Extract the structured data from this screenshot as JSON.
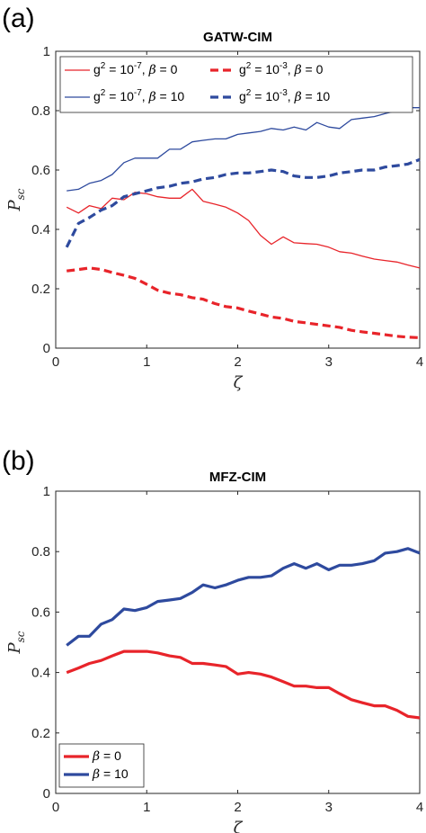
{
  "chart_data": [
    {
      "panel": "(a)",
      "type": "line",
      "title": "GATW-CIM",
      "xlabel": "ζ",
      "ylabel_main": "P",
      "ylabel_sub": "sc",
      "xlim": [
        0,
        4
      ],
      "ylim": [
        0,
        1
      ],
      "xticks": [
        "0",
        "1",
        "2",
        "3",
        "4"
      ],
      "yticks": [
        "0",
        "0.2",
        "0.4",
        "0.6",
        "0.8",
        "1"
      ],
      "legend_position": "top",
      "series": [
        {
          "name": "g² = 10⁻⁷, β = 0",
          "legend": {
            "g_exp": "-7",
            "beta": "0"
          },
          "color": "#e8242a",
          "style": "solid",
          "weight": "thin",
          "x": [
            0.12,
            0.25,
            0.37,
            0.5,
            0.62,
            0.75,
            0.87,
            1.0,
            1.12,
            1.25,
            1.37,
            1.5,
            1.62,
            1.75,
            1.87,
            2.0,
            2.12,
            2.25,
            2.37,
            2.5,
            2.62,
            2.75,
            2.87,
            3.0,
            3.12,
            3.25,
            3.37,
            3.5,
            3.62,
            3.75,
            3.87,
            4.0
          ],
          "y": [
            0.475,
            0.455,
            0.48,
            0.47,
            0.505,
            0.5,
            0.525,
            0.52,
            0.51,
            0.505,
            0.505,
            0.535,
            0.495,
            0.485,
            0.475,
            0.455,
            0.43,
            0.38,
            0.35,
            0.375,
            0.355,
            0.352,
            0.35,
            0.34,
            0.325,
            0.32,
            0.31,
            0.3,
            0.295,
            0.29,
            0.28,
            0.27
          ]
        },
        {
          "name": "g² = 10⁻⁷, β = 10",
          "legend": {
            "g_exp": "-7",
            "beta": "10"
          },
          "color": "#2e4a9e",
          "style": "solid",
          "weight": "thin",
          "x": [
            0.12,
            0.25,
            0.37,
            0.5,
            0.62,
            0.75,
            0.87,
            1.0,
            1.12,
            1.25,
            1.37,
            1.5,
            1.62,
            1.75,
            1.87,
            2.0,
            2.12,
            2.25,
            2.37,
            2.5,
            2.62,
            2.75,
            2.87,
            3.0,
            3.12,
            3.25,
            3.37,
            3.5,
            3.62,
            3.75,
            3.87,
            4.0
          ],
          "y": [
            0.53,
            0.535,
            0.555,
            0.565,
            0.585,
            0.625,
            0.64,
            0.64,
            0.64,
            0.67,
            0.67,
            0.695,
            0.7,
            0.705,
            0.705,
            0.72,
            0.725,
            0.73,
            0.74,
            0.735,
            0.745,
            0.735,
            0.76,
            0.745,
            0.74,
            0.77,
            0.775,
            0.78,
            0.79,
            0.8,
            0.81,
            0.81
          ]
        },
        {
          "name": "g² = 10⁻³, β = 0",
          "legend": {
            "g_exp": "-3",
            "beta": "0"
          },
          "color": "#e8242a",
          "style": "dashed",
          "weight": "thick",
          "x": [
            0.12,
            0.25,
            0.37,
            0.5,
            0.62,
            0.75,
            0.87,
            1.0,
            1.12,
            1.25,
            1.37,
            1.5,
            1.62,
            1.75,
            1.87,
            2.0,
            2.12,
            2.25,
            2.37,
            2.5,
            2.62,
            2.75,
            2.87,
            3.0,
            3.12,
            3.25,
            3.37,
            3.5,
            3.62,
            3.75,
            3.87,
            4.0
          ],
          "y": [
            0.26,
            0.265,
            0.27,
            0.265,
            0.255,
            0.245,
            0.235,
            0.215,
            0.195,
            0.185,
            0.18,
            0.17,
            0.165,
            0.15,
            0.14,
            0.135,
            0.125,
            0.115,
            0.105,
            0.1,
            0.09,
            0.085,
            0.08,
            0.075,
            0.07,
            0.06,
            0.055,
            0.05,
            0.045,
            0.04,
            0.037,
            0.035
          ]
        },
        {
          "name": "g² = 10⁻³, β = 10",
          "legend": {
            "g_exp": "-3",
            "beta": "10"
          },
          "color": "#2e4a9e",
          "style": "dashed",
          "weight": "thick",
          "x": [
            0.12,
            0.25,
            0.37,
            0.5,
            0.62,
            0.75,
            0.87,
            1.0,
            1.12,
            1.25,
            1.37,
            1.5,
            1.62,
            1.75,
            1.87,
            2.0,
            2.12,
            2.25,
            2.37,
            2.5,
            2.62,
            2.75,
            2.87,
            3.0,
            3.12,
            3.25,
            3.37,
            3.5,
            3.62,
            3.75,
            3.87,
            4.0
          ],
          "y": [
            0.34,
            0.42,
            0.44,
            0.465,
            0.48,
            0.51,
            0.52,
            0.53,
            0.54,
            0.545,
            0.555,
            0.56,
            0.57,
            0.575,
            0.585,
            0.59,
            0.59,
            0.595,
            0.6,
            0.595,
            0.58,
            0.575,
            0.575,
            0.58,
            0.59,
            0.595,
            0.6,
            0.6,
            0.61,
            0.615,
            0.62,
            0.635
          ]
        }
      ]
    },
    {
      "panel": "(b)",
      "type": "line",
      "title": "MFZ-CIM",
      "xlabel": "ζ",
      "ylabel_main": "P",
      "ylabel_sub": "sc",
      "xlim": [
        0,
        4
      ],
      "ylim": [
        0,
        1
      ],
      "xticks": [
        "0",
        "1",
        "2",
        "3",
        "4"
      ],
      "yticks": [
        "0",
        "0.2",
        "0.4",
        "0.6",
        "0.8",
        "1"
      ],
      "legend_position": "bottom-left",
      "series": [
        {
          "name": "β = 0",
          "legend": {
            "beta": "0"
          },
          "color": "#e8242a",
          "style": "solid",
          "weight": "thick",
          "x": [
            0.12,
            0.25,
            0.37,
            0.5,
            0.62,
            0.75,
            0.87,
            1.0,
            1.12,
            1.25,
            1.37,
            1.5,
            1.62,
            1.75,
            1.87,
            2.0,
            2.12,
            2.25,
            2.37,
            2.5,
            2.62,
            2.75,
            2.87,
            3.0,
            3.12,
            3.25,
            3.37,
            3.5,
            3.62,
            3.75,
            3.87,
            4.0
          ],
          "y": [
            0.4,
            0.415,
            0.43,
            0.44,
            0.455,
            0.47,
            0.47,
            0.47,
            0.465,
            0.455,
            0.45,
            0.43,
            0.43,
            0.425,
            0.42,
            0.395,
            0.4,
            0.395,
            0.385,
            0.37,
            0.355,
            0.355,
            0.35,
            0.35,
            0.33,
            0.31,
            0.3,
            0.29,
            0.29,
            0.275,
            0.255,
            0.25
          ]
        },
        {
          "name": "β = 10",
          "legend": {
            "beta": "10"
          },
          "color": "#2e4a9e",
          "style": "solid",
          "weight": "thick",
          "x": [
            0.12,
            0.25,
            0.37,
            0.5,
            0.62,
            0.75,
            0.87,
            1.0,
            1.12,
            1.25,
            1.37,
            1.5,
            1.62,
            1.75,
            1.87,
            2.0,
            2.12,
            2.25,
            2.37,
            2.5,
            2.62,
            2.75,
            2.87,
            3.0,
            3.12,
            3.25,
            3.37,
            3.5,
            3.62,
            3.75,
            3.87,
            4.0
          ],
          "y": [
            0.49,
            0.52,
            0.52,
            0.56,
            0.575,
            0.61,
            0.605,
            0.615,
            0.635,
            0.64,
            0.645,
            0.665,
            0.69,
            0.68,
            0.69,
            0.705,
            0.715,
            0.715,
            0.72,
            0.745,
            0.76,
            0.745,
            0.76,
            0.74,
            0.755,
            0.755,
            0.76,
            0.77,
            0.795,
            0.8,
            0.81,
            0.795
          ]
        }
      ]
    }
  ]
}
